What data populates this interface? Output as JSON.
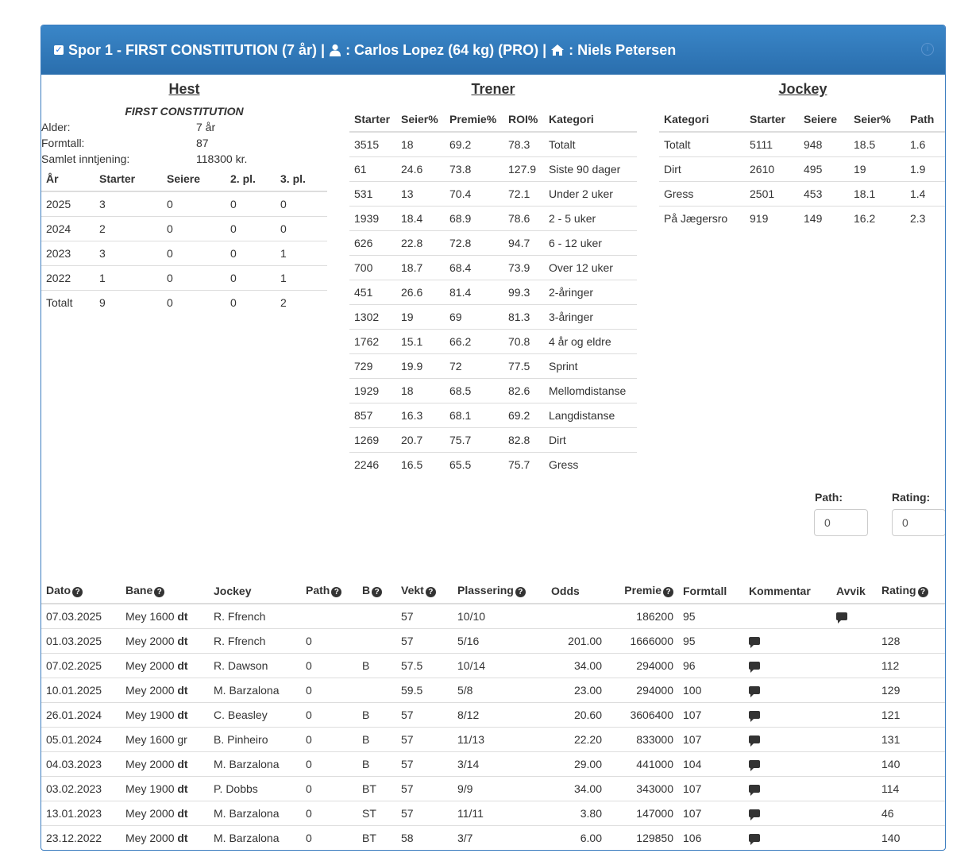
{
  "header": {
    "text_before_person": "Spor 1 - FIRST CONSTITUTION (7 år) |",
    "jockey_text": ": Carlos Lopez (64 kg) (PRO) |",
    "trainer_text": ": Niels Petersen"
  },
  "hest": {
    "title": "Hest",
    "name": "FIRST CONSTITUTION",
    "info": [
      {
        "k": "Alder:",
        "v": "7 år"
      },
      {
        "k": "Formtall:",
        "v": "87"
      },
      {
        "k": "Samlet inntjening:",
        "v": "118300 kr."
      }
    ],
    "headers": [
      "År",
      "Starter",
      "Seiere",
      "2. pl.",
      "3. pl."
    ],
    "rows": [
      [
        "2025",
        "3",
        "0",
        "0",
        "0"
      ],
      [
        "2024",
        "2",
        "0",
        "0",
        "0"
      ],
      [
        "2023",
        "3",
        "0",
        "0",
        "1"
      ],
      [
        "2022",
        "1",
        "0",
        "0",
        "1"
      ],
      [
        "Totalt",
        "9",
        "0",
        "0",
        "2"
      ]
    ]
  },
  "trener": {
    "title": "Trener",
    "headers": [
      "Starter",
      "Seier%",
      "Premie%",
      "ROI%",
      "Kategori"
    ],
    "rows": [
      [
        "3515",
        "18",
        "69.2",
        "78.3",
        "Totalt"
      ],
      [
        "61",
        "24.6",
        "73.8",
        "127.9",
        "Siste 90 dager"
      ],
      [
        "531",
        "13",
        "70.4",
        "72.1",
        "Under 2 uker"
      ],
      [
        "1939",
        "18.4",
        "68.9",
        "78.6",
        "2 - 5 uker"
      ],
      [
        "626",
        "22.8",
        "72.8",
        "94.7",
        "6 - 12 uker"
      ],
      [
        "700",
        "18.7",
        "68.4",
        "73.9",
        "Over 12 uker"
      ],
      [
        "451",
        "26.6",
        "81.4",
        "99.3",
        "2-åringer"
      ],
      [
        "1302",
        "19",
        "69",
        "81.3",
        "3-åringer"
      ],
      [
        "1762",
        "15.1",
        "66.2",
        "70.8",
        "4 år og eldre"
      ],
      [
        "729",
        "19.9",
        "72",
        "77.5",
        "Sprint"
      ],
      [
        "1929",
        "18",
        "68.5",
        "82.6",
        "Mellomdistanse"
      ],
      [
        "857",
        "16.3",
        "68.1",
        "69.2",
        "Langdistanse"
      ],
      [
        "1269",
        "20.7",
        "75.7",
        "82.8",
        "Dirt"
      ],
      [
        "2246",
        "16.5",
        "65.5",
        "75.7",
        "Gress"
      ]
    ]
  },
  "jockey": {
    "title": "Jockey",
    "headers": [
      "Kategori",
      "Starter",
      "Seiere",
      "Seier%",
      "Path"
    ],
    "rows": [
      [
        "Totalt",
        "5111",
        "948",
        "18.5",
        "1.6"
      ],
      [
        "Dirt",
        "2610",
        "495",
        "19",
        "1.9"
      ],
      [
        "Gress",
        "2501",
        "453",
        "18.1",
        "1.4"
      ],
      [
        "På Jægersro",
        "919",
        "149",
        "16.2",
        "2.3"
      ]
    ]
  },
  "inputs": {
    "path_label": "Path:",
    "path_value": "0",
    "rating_label": "Rating:",
    "rating_value": "0"
  },
  "history": {
    "headers": {
      "dato": "Dato",
      "bane": "Bane",
      "jockey": "Jockey",
      "path": "Path",
      "b": "B",
      "vekt": "Vekt",
      "plassering": "Plassering",
      "odds": "Odds",
      "premie": "Premie",
      "formtall": "Formtall",
      "kommentar": "Kommentar",
      "avvik": "Avvik",
      "rating": "Rating"
    },
    "rows": [
      {
        "dato": "07.03.2025",
        "bane": "Mey 1600",
        "surface": "dt",
        "jockey": "R. Ffrench",
        "path": "",
        "b": "",
        "vekt": "57",
        "plassering": "10/10",
        "odds": "",
        "premie": "186200",
        "formtall": "95",
        "kommentar": false,
        "avvik": true,
        "rating": ""
      },
      {
        "dato": "01.03.2025",
        "bane": "Mey 2000",
        "surface": "dt",
        "jockey": "R. Ffrench",
        "path": "0",
        "b": "",
        "vekt": "57",
        "plassering": "5/16",
        "odds": "201.00",
        "premie": "1666000",
        "formtall": "95",
        "kommentar": true,
        "avvik": false,
        "rating": "128"
      },
      {
        "dato": "07.02.2025",
        "bane": "Mey 2000",
        "surface": "dt",
        "jockey": "R. Dawson",
        "path": "0",
        "b": "B",
        "vekt": "57.5",
        "plassering": "10/14",
        "odds": "34.00",
        "premie": "294000",
        "formtall": "96",
        "kommentar": true,
        "avvik": false,
        "rating": "112"
      },
      {
        "dato": "10.01.2025",
        "bane": "Mey 2000",
        "surface": "dt",
        "jockey": "M. Barzalona",
        "path": "0",
        "b": "",
        "vekt": "59.5",
        "plassering": "5/8",
        "odds": "23.00",
        "premie": "294000",
        "formtall": "100",
        "kommentar": true,
        "avvik": false,
        "rating": "129"
      },
      {
        "dato": "26.01.2024",
        "bane": "Mey 1900",
        "surface": "dt",
        "jockey": "C. Beasley",
        "path": "0",
        "b": "B",
        "vekt": "57",
        "plassering": "8/12",
        "odds": "20.60",
        "premie": "3606400",
        "formtall": "107",
        "kommentar": true,
        "avvik": false,
        "rating": "121"
      },
      {
        "dato": "05.01.2024",
        "bane": "Mey 1600 gr",
        "surface": "",
        "jockey": "B. Pinheiro",
        "path": "0",
        "b": "B",
        "vekt": "57",
        "plassering": "11/13",
        "odds": "22.20",
        "premie": "833000",
        "formtall": "107",
        "kommentar": true,
        "avvik": false,
        "rating": "131"
      },
      {
        "dato": "04.03.2023",
        "bane": "Mey 2000",
        "surface": "dt",
        "jockey": "M. Barzalona",
        "path": "0",
        "b": "B",
        "vekt": "57",
        "plassering": "3/14",
        "odds": "29.00",
        "premie": "441000",
        "formtall": "104",
        "kommentar": true,
        "avvik": false,
        "rating": "140"
      },
      {
        "dato": "03.02.2023",
        "bane": "Mey 1900",
        "surface": "dt",
        "jockey": "P. Dobbs",
        "path": "0",
        "b": "BT",
        "vekt": "57",
        "plassering": "9/9",
        "odds": "34.00",
        "premie": "343000",
        "formtall": "107",
        "kommentar": true,
        "avvik": false,
        "rating": "114"
      },
      {
        "dato": "13.01.2023",
        "bane": "Mey 2000",
        "surface": "dt",
        "jockey": "M. Barzalona",
        "path": "0",
        "b": "ST",
        "vekt": "57",
        "plassering": "11/11",
        "odds": "3.80",
        "premie": "147000",
        "formtall": "107",
        "kommentar": true,
        "avvik": false,
        "rating": "46"
      },
      {
        "dato": "23.12.2022",
        "bane": "Mey 2000",
        "surface": "dt",
        "jockey": "M. Barzalona",
        "path": "0",
        "b": "BT",
        "vekt": "58",
        "plassering": "3/7",
        "odds": "6.00",
        "premie": "129850",
        "formtall": "106",
        "kommentar": true,
        "avvik": false,
        "rating": "140"
      }
    ]
  }
}
